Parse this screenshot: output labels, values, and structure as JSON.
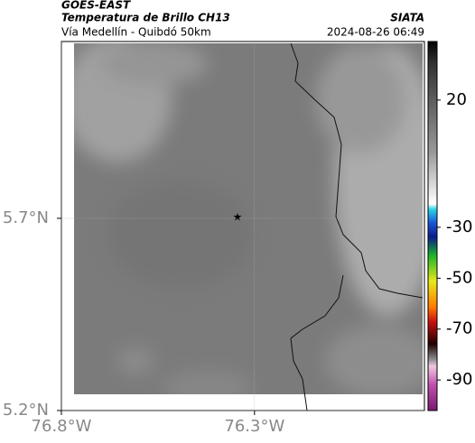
{
  "header": {
    "source": "GOES-EAST",
    "title": "Temperatura de Brillo CH13",
    "subtitle": "Vía Medellín - Quibdó 50km",
    "org": "SIATA",
    "timestamp": "2024-08-26 06:49"
  },
  "map": {
    "xlim": [
      -76.8,
      -75.86
    ],
    "ylim": [
      5.2,
      6.16
    ],
    "xticks": [
      {
        "value": -76.8,
        "label": "76.8°W"
      },
      {
        "value": -76.3,
        "label": "76.3°W"
      }
    ],
    "yticks": [
      {
        "value": 5.2,
        "label": "5.2°N"
      },
      {
        "value": 5.7,
        "label": "5.7°N"
      }
    ],
    "colorbar": {
      "lim": [
        43,
        -102
      ],
      "ticks": [
        20,
        -30,
        -50,
        -70,
        -90
      ]
    }
  }
}
